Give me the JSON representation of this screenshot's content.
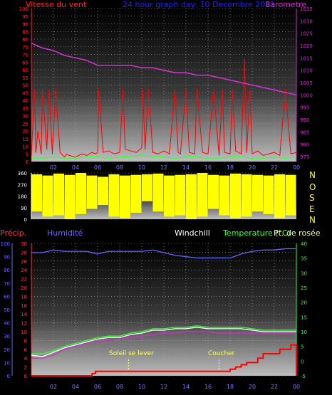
{
  "header": {
    "title": "24 hour graph day: 10 Decembre 2011",
    "wind_label": "Vitesse du vent",
    "baro_label": "Barometre",
    "title_color": "#2222ff",
    "wind_color": "#ff2222",
    "baro_color": "#cc33cc"
  },
  "direction": {
    "letters": [
      "N",
      "O",
      "S",
      "E",
      "N"
    ],
    "letter_color": "#ffff00"
  },
  "bottom": {
    "precip_label": "Précip.",
    "humidity_label": "Humidité",
    "windchill_label": "Windchill",
    "temperature_label": "Temperature (°C)",
    "dewpoint_label": "Pt. de rosée",
    "sunrise_label": "Soleil se lever",
    "sunset_label": "Coucher",
    "precip_color": "#ff3333",
    "humidity_color": "#6666ff",
    "windchill_color": "#ffffff",
    "temperature_color": "#33ff33",
    "dewpoint_color": "#ffffaa",
    "sun_color": "#ffff66"
  },
  "chart_data": [
    {
      "type": "line",
      "panel": "wind-barometer",
      "x_ticks": [
        "02",
        "04",
        "06",
        "08",
        "10",
        "12",
        "14",
        "16",
        "18",
        "20",
        "22",
        "00"
      ],
      "y_left_ticks": [
        "0",
        "5",
        "10",
        "15",
        "20",
        "25",
        "30",
        "35",
        "40",
        "45",
        "50",
        "55",
        "60",
        "65",
        "70",
        "75",
        "80",
        "85",
        "90",
        "95",
        "100"
      ],
      "y_left_lim": [
        0,
        100
      ],
      "y_right_ticks": [
        "975",
        "980",
        "985",
        "990",
        "995",
        "1000",
        "1005",
        "1010",
        "1015",
        "1020",
        "1025",
        "1030",
        "1035"
      ],
      "y_right_lim": [
        973,
        1035
      ],
      "series": [
        {
          "name": "Vitesse du vent",
          "axis": "left",
          "color": "#ff0000",
          "x_hours": [
            0,
            0.3,
            0.4,
            0.6,
            0.9,
            1.0,
            1.4,
            1.6,
            1.9,
            2.2,
            2.6,
            3.0,
            3.2,
            3.4,
            4.0,
            4.6,
            5.0,
            5.5,
            5.8,
            6.0,
            6.1,
            6.5,
            7.0,
            7.5,
            8.0,
            8.3,
            8.5,
            9.0,
            9.5,
            10.0,
            10.1,
            10.3,
            10.6,
            11.0,
            11.5,
            12.0,
            12.5,
            13.0,
            13.3,
            13.5,
            14.0,
            14.3,
            14.8,
            15.0,
            15.5,
            16.0,
            16.5,
            17.0,
            17.3,
            17.5,
            18.0,
            18.2,
            18.5,
            19.0,
            19.3,
            19.5,
            19.8,
            20.0,
            20.5,
            21.0,
            21.5,
            22.0,
            22.5,
            23.0,
            23.5,
            24.0
          ],
          "values": [
            4,
            47,
            6,
            20,
            5,
            47,
            8,
            47,
            5,
            47,
            6,
            3,
            5,
            4,
            3,
            5,
            4,
            6,
            5,
            6,
            47,
            6,
            7,
            5,
            6,
            47,
            8,
            7,
            6,
            9,
            47,
            8,
            47,
            6,
            5,
            7,
            5,
            47,
            6,
            5,
            47,
            6,
            5,
            47,
            6,
            5,
            47,
            4,
            47,
            6,
            5,
            47,
            7,
            5,
            67,
            6,
            47,
            5,
            7,
            4,
            5,
            6,
            4,
            47,
            5,
            6
          ]
        },
        {
          "name": "Vent moyen",
          "axis": "left",
          "color": "#33ff33",
          "x_hours": [
            0,
            1,
            2,
            3,
            4,
            5,
            6,
            7,
            8,
            9,
            10,
            11,
            12,
            13,
            14,
            15,
            16,
            17,
            18,
            19,
            20,
            21,
            22,
            23,
            24
          ],
          "values": [
            2,
            2,
            3,
            2,
            2,
            3,
            3,
            2,
            3,
            3,
            4,
            3,
            3,
            2,
            3,
            3,
            2,
            2,
            3,
            3,
            2,
            2,
            3,
            2,
            3
          ]
        },
        {
          "name": "Barometre",
          "axis": "right",
          "color": "#cc33cc",
          "x_hours": [
            0,
            1,
            2,
            3,
            4,
            5,
            6,
            7,
            8,
            9,
            10,
            11,
            12,
            13,
            14,
            15,
            16,
            17,
            18,
            19,
            20,
            21,
            22,
            23,
            24
          ],
          "values": [
            1021,
            1019,
            1018,
            1016,
            1015,
            1014,
            1012,
            1012,
            1012,
            1012,
            1011,
            1011,
            1010,
            1009,
            1009,
            1008,
            1008,
            1007,
            1006,
            1005,
            1004,
            1003,
            1002,
            1001,
            1000
          ]
        }
      ]
    },
    {
      "type": "bar",
      "panel": "wind-direction",
      "y_ticks": [
        "0",
        "90",
        "180",
        "270",
        "360"
      ],
      "ylim": [
        0,
        360
      ],
      "color": "#ffff00",
      "x_hours": [
        0,
        1,
        2,
        3,
        4,
        5,
        6,
        7,
        8,
        9,
        10,
        11,
        12,
        13,
        14,
        15,
        16,
        17,
        18,
        19,
        20,
        21,
        22,
        23,
        24
      ],
      "low": [
        60,
        20,
        30,
        0,
        40,
        80,
        110,
        20,
        10,
        50,
        140,
        60,
        20,
        30,
        0,
        20,
        80,
        30,
        10,
        20,
        60,
        40,
        10,
        30,
        50
      ],
      "high": [
        350,
        340,
        355,
        345,
        360,
        340,
        330,
        350,
        340,
        345,
        350,
        355,
        340,
        345,
        350,
        360,
        345,
        340,
        355,
        350,
        345,
        340,
        350,
        345,
        350
      ]
    },
    {
      "type": "line",
      "panel": "humidity-temperature-precip",
      "x_ticks": [
        "02",
        "04",
        "06",
        "08",
        "10",
        "12",
        "14",
        "16",
        "18",
        "20",
        "22",
        "00"
      ],
      "y_precip_ticks": [
        "0",
        "2",
        "4",
        "6",
        "8",
        "10",
        "12",
        "14",
        "16",
        "18",
        "20",
        "22",
        "24",
        "26",
        "28",
        "30"
      ],
      "y_precip_lim": [
        0,
        30
      ],
      "y_humidity_ticks": [
        "0",
        "10",
        "20",
        "30",
        "40",
        "50",
        "60",
        "70",
        "80",
        "90",
        "100"
      ],
      "y_humidity_lim": [
        0,
        100
      ],
      "y_temp_ticks": [
        "-5",
        "0",
        "5",
        "10",
        "15",
        "20",
        "25",
        "30",
        "35",
        "40"
      ],
      "y_temp_lim": [
        -5,
        40
      ],
      "sunrise_hour": 8.8,
      "sunset_hour": 17.0,
      "series": [
        {
          "name": "Humidité",
          "axis": "humidity",
          "color": "#6666ff",
          "x_hours": [
            0,
            1,
            2,
            3,
            4,
            5,
            6,
            7,
            8,
            9,
            10,
            11,
            12,
            13,
            14,
            15,
            16,
            17,
            18,
            19,
            20,
            21,
            22,
            23,
            24
          ],
          "values": [
            93,
            93,
            95,
            94,
            94,
            94,
            92,
            94,
            94,
            94,
            94,
            95,
            93,
            91,
            90,
            89,
            89,
            89,
            89,
            92,
            94,
            95,
            95,
            96,
            96
          ]
        },
        {
          "name": "Temperature (°C)",
          "axis": "temp",
          "color": "#33ff33",
          "x_hours": [
            0,
            1,
            2,
            3,
            4,
            5,
            6,
            7,
            8,
            9,
            10,
            11,
            12,
            13,
            14,
            15,
            16,
            17,
            18,
            19,
            20,
            21,
            22,
            23,
            24
          ],
          "values": [
            2.5,
            2.5,
            3.5,
            5,
            6,
            7,
            8,
            8.5,
            8.5,
            9.5,
            10,
            11,
            11,
            11.5,
            11.5,
            12,
            11.5,
            11.5,
            11.5,
            11.5,
            11,
            10.5,
            10.5,
            10.5,
            10.5
          ]
        },
        {
          "name": "Windchill",
          "axis": "temp",
          "color": "#ffffff",
          "x_hours": [
            0,
            1,
            2,
            3,
            4,
            5,
            6,
            7,
            8,
            9,
            10,
            11,
            12,
            13,
            14,
            15,
            16,
            17,
            18,
            19,
            20,
            21,
            22,
            23,
            24
          ],
          "values": [
            2,
            1.5,
            3,
            4.5,
            5.5,
            6.5,
            7.5,
            8,
            8,
            9,
            9.5,
            10.5,
            10.5,
            11,
            11,
            11.5,
            11,
            11,
            11,
            11,
            10.5,
            10,
            10,
            10,
            10
          ]
        },
        {
          "name": "Pt. de rosée",
          "axis": "temp",
          "color": "#cc33cc",
          "x_hours": [
            0,
            1,
            2,
            3,
            4,
            5,
            6,
            7,
            8,
            9,
            10,
            11,
            12,
            13,
            14,
            15,
            16,
            17,
            18,
            19,
            20,
            21,
            22,
            23,
            24
          ],
          "values": [
            1,
            1,
            2,
            4,
            5,
            6,
            6.5,
            7,
            7.5,
            8,
            8.5,
            9,
            9.5,
            9.5,
            10,
            10,
            10,
            9.5,
            9.5,
            9.5,
            9.5,
            9.5,
            9.5,
            9.5,
            9.5
          ]
        },
        {
          "name": "Précip.",
          "axis": "precip",
          "color": "#ff0000",
          "step": true,
          "x_hours": [
            0,
            4.5,
            5.5,
            5.8,
            17.5,
            18.0,
            18.5,
            19.0,
            19.5,
            20.5,
            21.0,
            22.0,
            22.5,
            23.0,
            23.5,
            24.0
          ],
          "values": [
            0,
            0,
            0.5,
            1,
            1,
            1.5,
            2,
            2.5,
            3,
            4,
            5,
            5,
            6,
            6,
            7,
            0
          ]
        }
      ]
    }
  ]
}
